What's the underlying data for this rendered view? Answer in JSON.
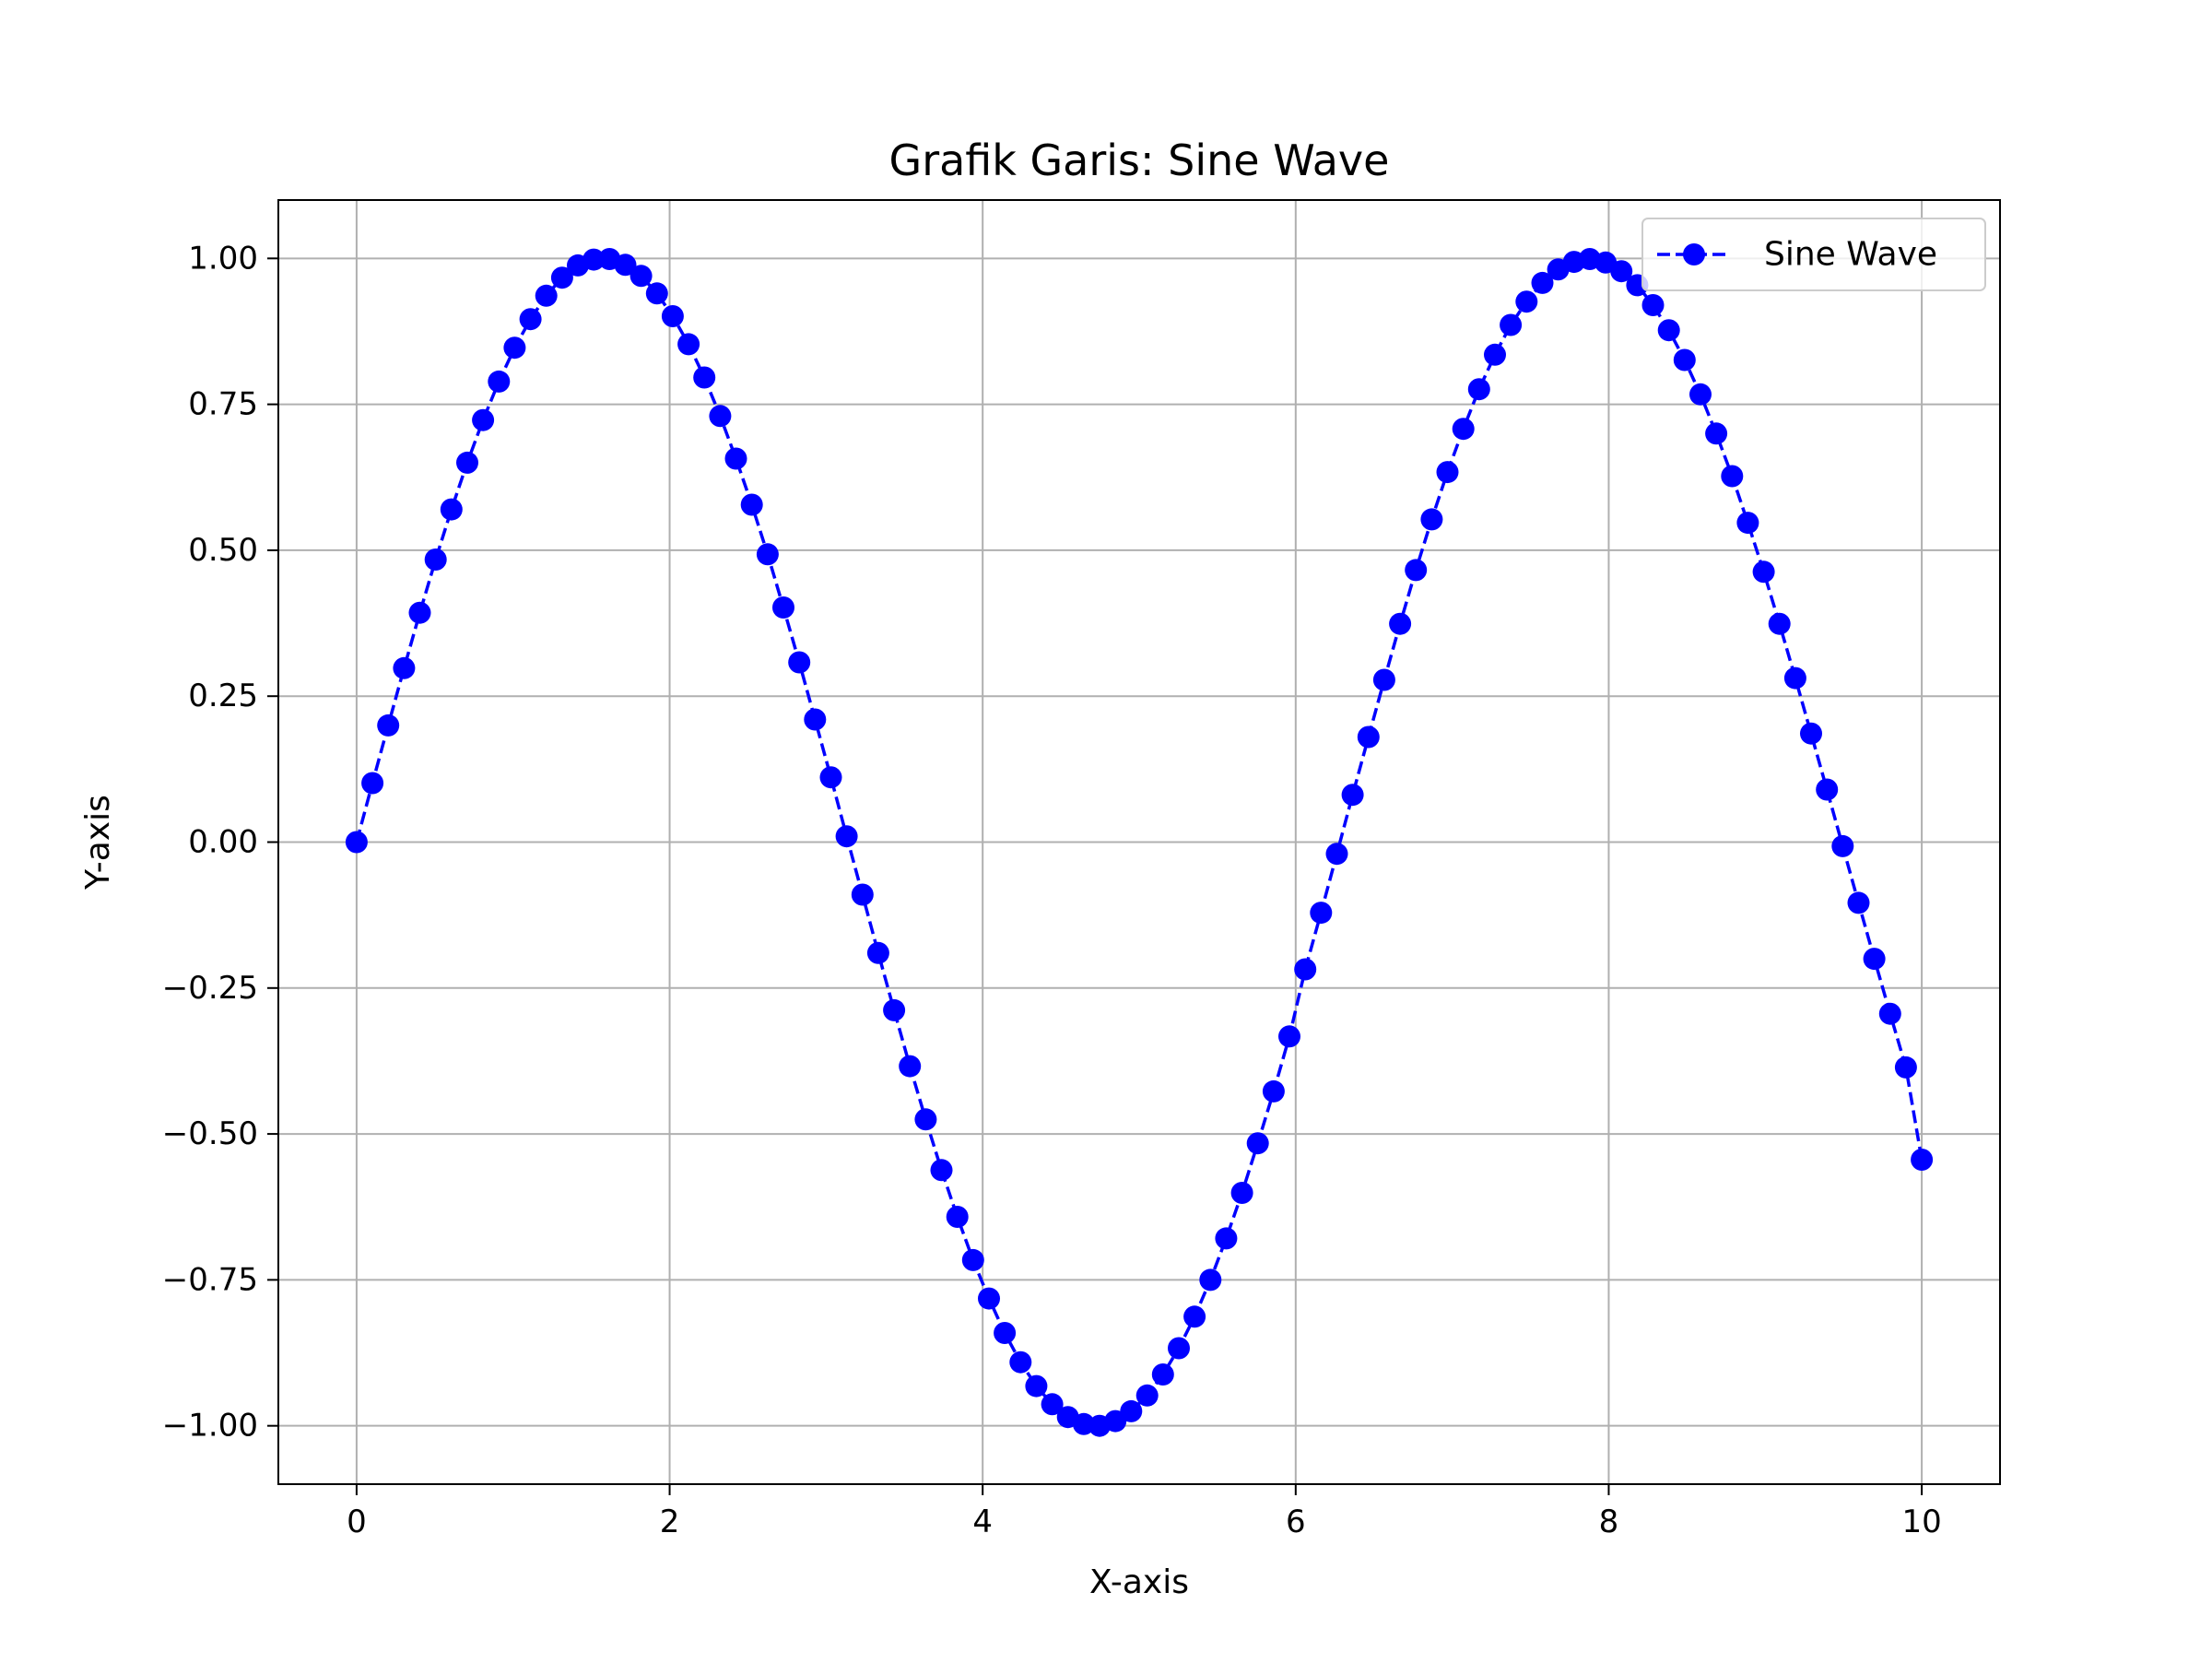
{
  "chart_data": {
    "type": "line",
    "title": "Grafik Garis: Sine Wave",
    "xlabel": "X-axis",
    "ylabel": "Y-axis",
    "xlim": [
      -0.5,
      10.5
    ],
    "ylim": [
      -1.1,
      1.1
    ],
    "x_ticks": [
      0,
      2,
      4,
      6,
      8,
      10
    ],
    "x_tick_labels": [
      "0",
      "2",
      "4",
      "6",
      "8",
      "10"
    ],
    "y_ticks": [
      -1.0,
      -0.75,
      -0.5,
      -0.25,
      0.0,
      0.25,
      0.5,
      0.75,
      1.0
    ],
    "y_tick_labels": [
      "−1.00",
      "−0.75",
      "−0.50",
      "−0.25",
      "0.00",
      "0.25",
      "0.50",
      "0.75",
      "1.00"
    ],
    "grid": true,
    "legend_position": "top-right",
    "series": [
      {
        "name": "Sine Wave",
        "color": "#0000ff",
        "line_style": "dashed",
        "marker": "circle",
        "x": [
          0.0,
          0.101,
          0.202,
          0.303,
          0.404,
          0.505,
          0.606,
          0.707,
          0.808,
          0.909,
          1.01,
          1.111,
          1.212,
          1.313,
          1.414,
          1.515,
          1.616,
          1.717,
          1.818,
          1.919,
          2.02,
          2.121,
          2.222,
          2.323,
          2.424,
          2.525,
          2.626,
          2.727,
          2.828,
          2.929,
          3.03,
          3.131,
          3.232,
          3.333,
          3.434,
          3.535,
          3.636,
          3.737,
          3.838,
          3.939,
          4.04,
          4.141,
          4.242,
          4.343,
          4.444,
          4.545,
          4.646,
          4.747,
          4.848,
          4.949,
          5.051,
          5.152,
          5.253,
          5.354,
          5.455,
          5.556,
          5.657,
          5.758,
          5.859,
          5.96,
          6.061,
          6.162,
          6.263,
          6.364,
          6.465,
          6.566,
          6.667,
          6.768,
          6.869,
          6.97,
          7.071,
          7.172,
          7.273,
          7.374,
          7.475,
          7.576,
          7.677,
          7.778,
          7.879,
          7.98,
          8.081,
          8.182,
          8.283,
          8.384,
          8.485,
          8.586,
          8.687,
          8.788,
          8.889,
          8.99,
          9.091,
          9.192,
          9.293,
          9.394,
          9.495,
          9.596,
          9.697,
          9.798,
          9.899,
          10.0
        ],
        "y": [
          0.0,
          0.101,
          0.2,
          0.298,
          0.393,
          0.484,
          0.57,
          0.65,
          0.723,
          0.789,
          0.847,
          0.896,
          0.936,
          0.967,
          0.988,
          0.998,
          0.999,
          0.989,
          0.97,
          0.94,
          0.901,
          0.853,
          0.796,
          0.73,
          0.657,
          0.578,
          0.493,
          0.402,
          0.308,
          0.21,
          0.111,
          0.01,
          -0.09,
          -0.19,
          -0.288,
          -0.384,
          -0.475,
          -0.562,
          -0.642,
          -0.716,
          -0.782,
          -0.841,
          -0.891,
          -0.932,
          -0.963,
          -0.985,
          -0.997,
          -1.0,
          -0.992,
          -0.975,
          -0.948,
          -0.912,
          -0.867,
          -0.813,
          -0.75,
          -0.679,
          -0.601,
          -0.516,
          -0.427,
          -0.333,
          -0.218,
          -0.121,
          -0.02,
          0.081,
          0.18,
          0.278,
          0.374,
          0.466,
          0.553,
          0.634,
          0.708,
          0.776,
          0.835,
          0.886,
          0.926,
          0.958,
          0.981,
          0.994,
          0.999,
          0.993,
          0.978,
          0.954,
          0.92,
          0.877,
          0.826,
          0.767,
          0.7,
          0.627,
          0.547,
          0.463,
          0.374,
          0.281,
          0.186,
          0.09,
          -0.007,
          -0.104,
          -0.2,
          -0.294,
          -0.386,
          -0.544
        ]
      }
    ]
  }
}
